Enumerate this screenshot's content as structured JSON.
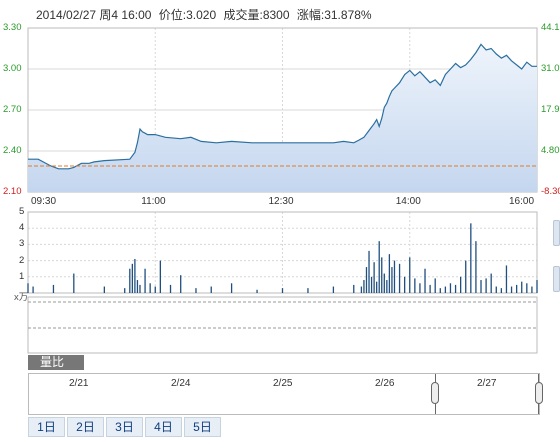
{
  "header": {
    "datetime": "2014/02/27 周4 16:00",
    "price_text": "价位:3.020",
    "volume_text": "成交量:8300",
    "change_text": "涨幅:31.878%"
  },
  "colors": {
    "price_line": "#2b6f9f",
    "price_fill_top": "#d6e4f4",
    "price_fill_bottom": "#c2d4ee",
    "ref_line": "#e07a2a",
    "up_label": "#2a9a2a",
    "down_label": "#d02020",
    "volume_bar": "#1f4f7f",
    "grid": "#d8d8d8"
  },
  "chart_data": {
    "type": "line",
    "price_axis": {
      "ticks": [
        "3.30",
        "3.00",
        "2.70",
        "2.40",
        "2.10"
      ],
      "ylim": [
        2.1,
        3.3
      ],
      "reference": 2.29
    },
    "percent_axis": {
      "ticks": [
        "44.1",
        "31.0",
        "17.9",
        "4.80",
        "-8.30"
      ]
    },
    "time_ticks": [
      "09:30",
      "11:00",
      "12:30",
      "14:00",
      "16:00"
    ],
    "price_series": {
      "t": [
        0,
        0.02,
        0.045,
        0.06,
        0.08,
        0.09,
        0.1,
        0.105,
        0.12,
        0.13,
        0.15,
        0.2,
        0.21,
        0.215,
        0.22,
        0.225,
        0.23,
        0.235,
        0.25,
        0.27,
        0.3,
        0.32,
        0.34,
        0.37,
        0.4,
        0.44,
        0.5,
        0.56,
        0.6,
        0.62,
        0.64,
        0.65,
        0.66,
        0.67,
        0.68,
        0.685,
        0.69,
        0.695,
        0.7,
        0.705,
        0.71,
        0.715,
        0.72,
        0.73,
        0.74,
        0.75,
        0.76,
        0.77,
        0.78,
        0.79,
        0.8,
        0.81,
        0.82,
        0.83,
        0.84,
        0.85,
        0.86,
        0.87,
        0.88,
        0.89,
        0.9,
        0.91,
        0.92,
        0.93,
        0.94,
        0.95,
        0.96,
        0.97,
        0.98,
        0.99,
        1.0
      ],
      "price": [
        2.34,
        2.34,
        2.29,
        2.27,
        2.27,
        2.28,
        2.3,
        2.31,
        2.31,
        2.32,
        2.33,
        2.34,
        2.39,
        2.46,
        2.56,
        2.54,
        2.53,
        2.52,
        2.52,
        2.5,
        2.49,
        2.5,
        2.47,
        2.46,
        2.47,
        2.46,
        2.46,
        2.46,
        2.46,
        2.47,
        2.46,
        2.48,
        2.5,
        2.55,
        2.6,
        2.63,
        2.58,
        2.64,
        2.72,
        2.75,
        2.8,
        2.84,
        2.86,
        2.9,
        2.96,
        2.99,
        2.95,
        2.98,
        2.94,
        2.9,
        2.92,
        2.88,
        2.96,
        3.0,
        3.04,
        3.01,
        3.03,
        3.07,
        3.12,
        3.18,
        3.14,
        3.15,
        3.11,
        3.08,
        3.1,
        3.06,
        3.03,
        3.0,
        3.05,
        3.02,
        3.02
      ]
    },
    "volume_axis": {
      "ticks": [
        "5",
        "4",
        "3",
        "2",
        "1"
      ],
      "unit": "x万",
      "ylim": [
        0,
        5
      ]
    },
    "volume_series": {
      "t": [
        0.0,
        0.01,
        0.05,
        0.09,
        0.15,
        0.19,
        0.2,
        0.205,
        0.21,
        0.215,
        0.22,
        0.23,
        0.24,
        0.25,
        0.26,
        0.28,
        0.3,
        0.33,
        0.36,
        0.4,
        0.45,
        0.5,
        0.55,
        0.6,
        0.64,
        0.655,
        0.66,
        0.665,
        0.67,
        0.675,
        0.68,
        0.685,
        0.69,
        0.695,
        0.7,
        0.705,
        0.71,
        0.715,
        0.72,
        0.73,
        0.74,
        0.75,
        0.76,
        0.77,
        0.78,
        0.79,
        0.8,
        0.81,
        0.82,
        0.83,
        0.84,
        0.85,
        0.86,
        0.87,
        0.88,
        0.89,
        0.9,
        0.91,
        0.92,
        0.93,
        0.94,
        0.95,
        0.96,
        0.97,
        0.98,
        0.99,
        1.0
      ],
      "volume": [
        0.6,
        0.4,
        0.5,
        1.2,
        0.4,
        0.3,
        1.5,
        1.8,
        2.1,
        0.8,
        0.5,
        1.5,
        0.6,
        0.4,
        2.0,
        0.5,
        1.1,
        0.3,
        0.4,
        0.6,
        0.2,
        0.3,
        0.3,
        0.4,
        0.5,
        0.4,
        0.8,
        1.6,
        2.6,
        1.0,
        1.9,
        0.7,
        3.2,
        2.2,
        1.2,
        0.8,
        2.4,
        1.6,
        2.0,
        1.8,
        1.0,
        2.2,
        0.9,
        0.6,
        1.5,
        0.5,
        0.9,
        0.3,
        0.4,
        0.6,
        0.5,
        1.0,
        2.0,
        4.3,
        3.2,
        0.8,
        0.9,
        1.2,
        0.4,
        0.3,
        1.7,
        0.4,
        0.5,
        0.7,
        0.6,
        0.4,
        0.8
      ]
    }
  },
  "indicator_tab": "量比",
  "navigator": {
    "dates": [
      "2/21",
      "2/24",
      "2/25",
      "2/26",
      "2/27"
    ]
  },
  "range_tabs": [
    "1日",
    "2日",
    "3日",
    "4日",
    "5日"
  ]
}
